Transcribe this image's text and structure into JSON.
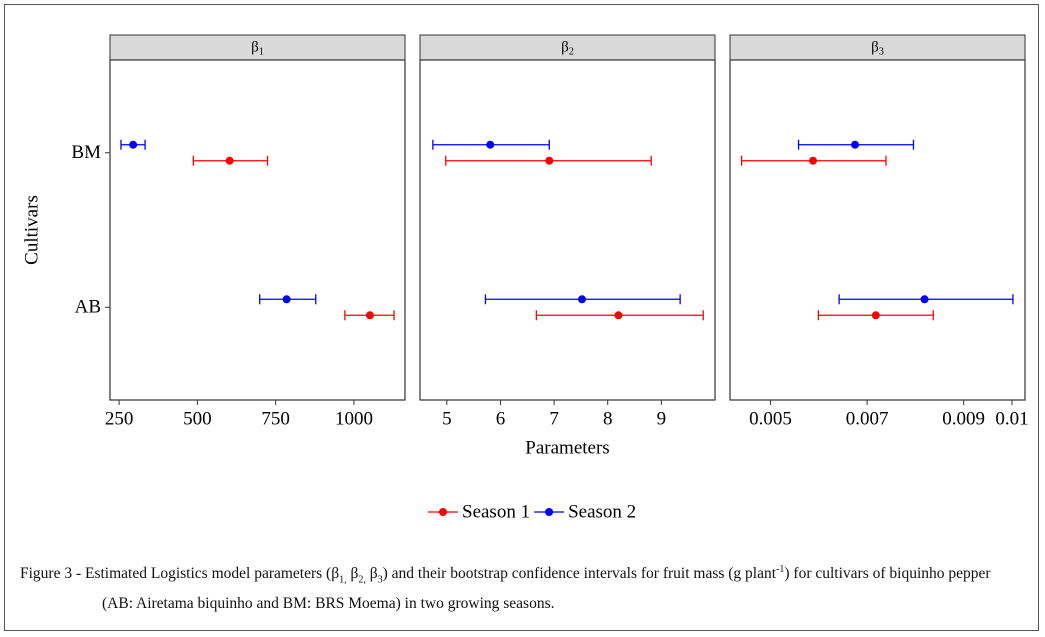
{
  "figure": {
    "xlabel": "Parameters",
    "ylabel": "Cultivars",
    "categories": [
      "BM",
      "AB"
    ],
    "legend": [
      {
        "name": "Season 1",
        "color": "#ff0000"
      },
      {
        "name": "Season 2",
        "color": "#0000ff"
      }
    ]
  },
  "chart_data": [
    {
      "type": "errorbar",
      "title": "β",
      "title_sub": "1",
      "xlim": [
        221,
        1163
      ],
      "xticks": [
        250,
        500,
        750,
        1000
      ],
      "series": [
        {
          "values": [
            603,
            1051
          ],
          "lower": [
            487,
            971
          ],
          "upper": [
            724,
            1128
          ]
        },
        {
          "values": [
            295,
            785
          ],
          "lower": [
            256,
            699
          ],
          "upper": [
            333,
            878
          ]
        }
      ]
    },
    {
      "type": "errorbar",
      "title": "β",
      "title_sub": "2",
      "xlim": [
        4.5,
        10.0
      ],
      "xticks": [
        5,
        6,
        7,
        8,
        9
      ],
      "series": [
        {
          "values": [
            6.91,
            8.2
          ],
          "lower": [
            4.98,
            6.67
          ],
          "upper": [
            8.81,
            9.78
          ]
        },
        {
          "values": [
            5.81,
            7.52
          ],
          "lower": [
            4.74,
            5.72
          ],
          "upper": [
            6.91,
            9.35
          ]
        }
      ]
    },
    {
      "type": "errorbar",
      "title": "β",
      "title_sub": "3",
      "xlim": [
        0.00416,
        0.01027
      ],
      "xticks": [
        0.005,
        0.007,
        0.009,
        0.01
      ],
      "series": [
        {
          "values": [
            0.00588,
            0.00718
          ],
          "lower": [
            0.0044,
            0.00599
          ],
          "upper": [
            0.00739,
            0.00837
          ]
        },
        {
          "values": [
            0.00675,
            0.00819
          ],
          "lower": [
            0.00558,
            0.00642
          ],
          "upper": [
            0.00796,
            0.01002
          ]
        }
      ]
    }
  ],
  "caption": [
    "Figure 3 - Estimated Logistics model parameters (β",
    "1,",
    " β",
    "2,",
    " β",
    "3",
    ") and their bootstrap confidence intervals for fruit mass (g plant",
    "-1",
    ") for cultivars of biquinho pepper (AB: Airetama biquinho and BM: BRS Moema) in two growing seasons."
  ]
}
